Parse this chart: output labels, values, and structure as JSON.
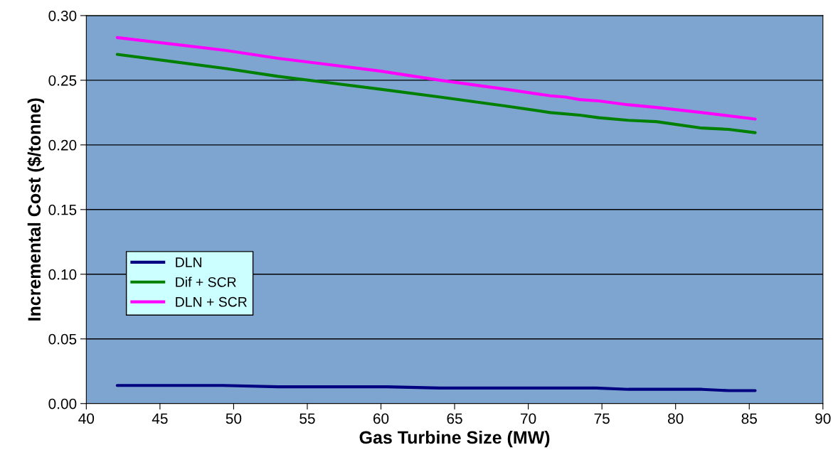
{
  "chart_data": {
    "type": "line",
    "xlabel": "Gas Turbine Size (MW)",
    "ylabel": "Incremental Cost ($/tonne)",
    "xlim": [
      40,
      90
    ],
    "xticks": [
      40,
      45,
      50,
      55,
      60,
      65,
      70,
      75,
      80,
      85,
      90
    ],
    "ylim": [
      0,
      0.3
    ],
    "yticks": [
      {
        "value": 0,
        "label": "0.00"
      },
      {
        "value": 0.05,
        "label": "0.05"
      },
      {
        "value": 0.1,
        "label": "0.10"
      },
      {
        "value": 0.15,
        "label": "0.15"
      },
      {
        "value": 0.2,
        "label": "0.20"
      },
      {
        "value": 0.25,
        "label": "0.25"
      },
      {
        "value": 0.3,
        "label": "0.30"
      }
    ],
    "grid": "y",
    "legend": "left",
    "marker": "none",
    "line_style": "solid",
    "series": [
      {
        "name": "DLN",
        "color": "#000080",
        "x": [
          42.1,
          49.3,
          53,
          60.4,
          64,
          74.6,
          76.8,
          81.8,
          83.6,
          85.4
        ],
        "values": [
          0.014,
          0.014,
          0.013,
          0.013,
          0.012,
          0.012,
          0.011,
          0.011,
          0.01,
          0.01
        ]
      },
      {
        "name": "Dif + SCR",
        "color": "#008000",
        "x": [
          42.1,
          49.5,
          53,
          56.5,
          60,
          64,
          68.5,
          71.5,
          73.5,
          74.8,
          76.8,
          78.7,
          81.8,
          83.6,
          85.4
        ],
        "values": [
          0.27,
          0.259,
          0.253,
          0.248,
          0.243,
          0.237,
          0.23,
          0.225,
          0.223,
          0.221,
          0.219,
          0.218,
          0.213,
          0.212,
          0.2095
        ]
      },
      {
        "name": "DLN + SCR",
        "color": "#ff00ff",
        "x": [
          42.1,
          49.5,
          53,
          56.5,
          60,
          64,
          68.5,
          71.5,
          72.5,
          73.5,
          74.8,
          76.8,
          78.7,
          81.8,
          85.4
        ],
        "values": [
          0.283,
          0.273,
          0.267,
          0.262,
          0.257,
          0.25,
          0.243,
          0.238,
          0.237,
          0.235,
          0.234,
          0.231,
          0.229,
          0.225,
          0.22
        ]
      }
    ]
  }
}
